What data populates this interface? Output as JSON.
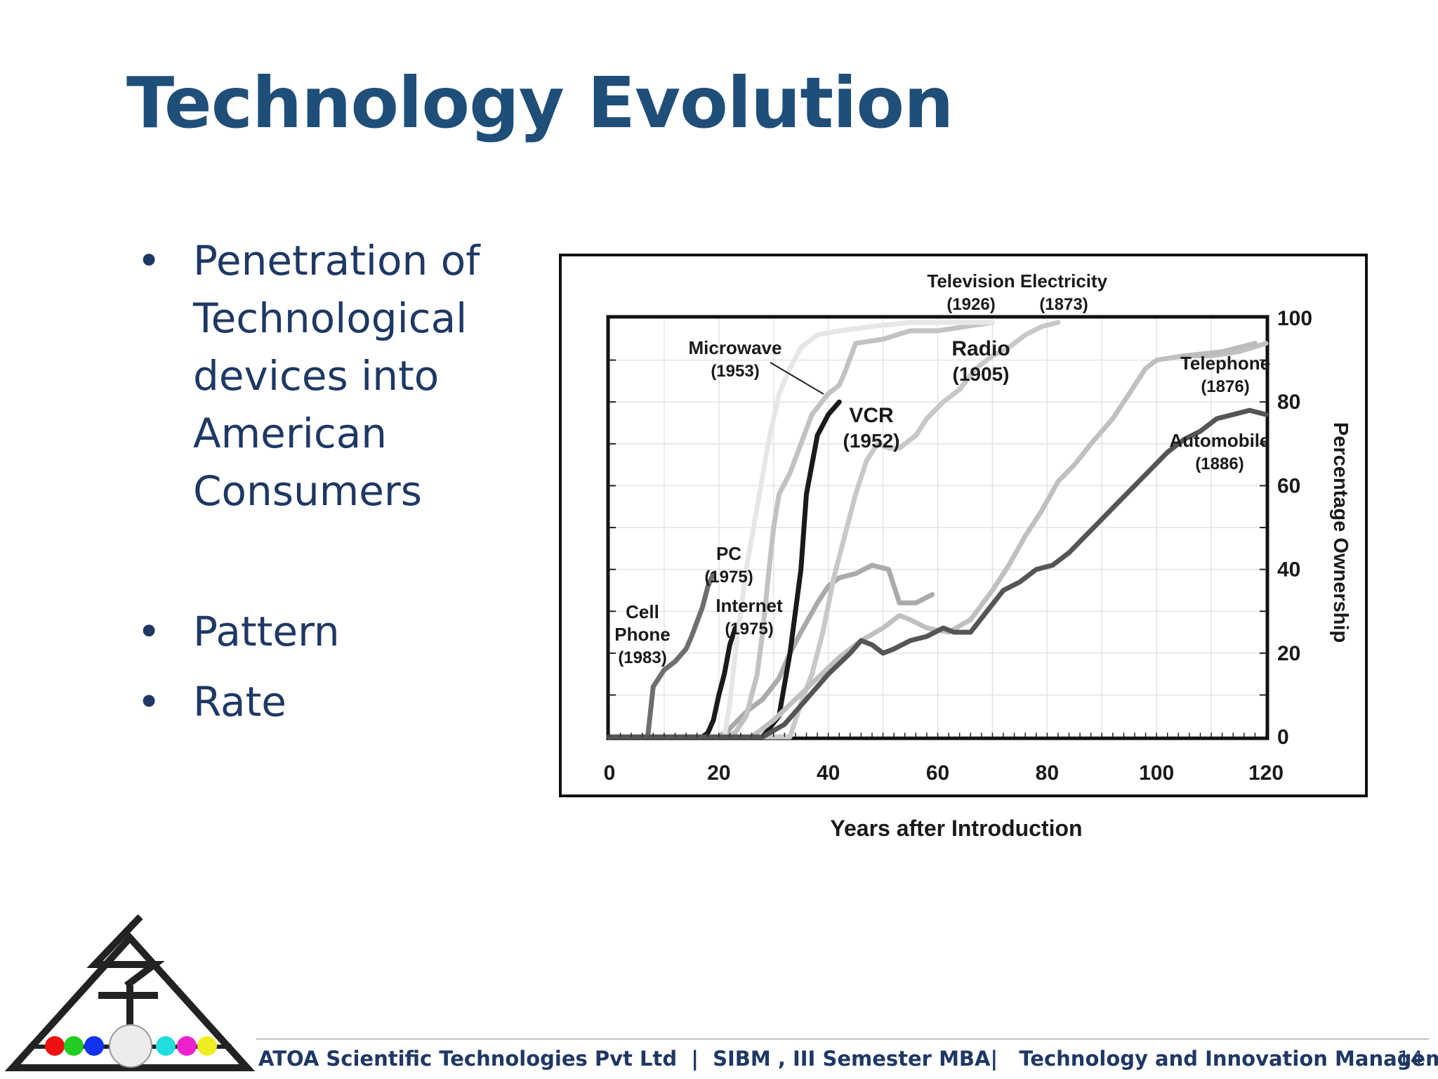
{
  "slide": {
    "title": "Technology Evolution",
    "bullets": [
      "Penetration of Technological devices into American Consumers",
      "Pattern",
      "Rate"
    ],
    "bullet_symbol": "•",
    "page_number": "14"
  },
  "footer": {
    "company": "ATOA Scientific Technologies Pvt Ltd",
    "program": "SIBM , III Semester MBA",
    "course": "Technology and Innovation Management",
    "separator": "|"
  },
  "colors": {
    "title": "#1f4e79",
    "text": "#1f3864"
  },
  "chart_data": {
    "type": "line",
    "title": "",
    "xlabel": "Years after Introduction",
    "ylabel": "Percentage Ownership",
    "xlim": [
      0,
      120
    ],
    "ylim": [
      0,
      100
    ],
    "xticks": [
      0,
      20,
      40,
      60,
      80,
      100,
      120
    ],
    "yticks": [
      0,
      20,
      40,
      60,
      80,
      100
    ],
    "y_axis_side": "right",
    "grid": true,
    "legend": "none",
    "series": [
      {
        "name": "Cell Phone",
        "year": "(1983)",
        "color": "#6e6e6e",
        "points": [
          [
            0,
            0
          ],
          [
            7,
            0
          ],
          [
            8,
            12
          ],
          [
            10,
            16
          ],
          [
            12,
            18
          ],
          [
            14,
            21
          ],
          [
            15,
            24
          ],
          [
            17,
            31
          ],
          [
            18,
            36
          ],
          [
            19,
            39
          ]
        ]
      },
      {
        "name": "PC",
        "year": "(1975)",
        "color": "#aaaaaa",
        "points": [
          [
            0,
            0
          ],
          [
            18,
            0
          ],
          [
            20,
            0
          ],
          [
            22,
            2
          ],
          [
            25,
            6
          ],
          [
            28,
            9
          ],
          [
            31,
            14
          ],
          [
            33,
            20
          ],
          [
            35,
            25
          ],
          [
            38,
            32
          ],
          [
            40,
            36
          ],
          [
            42,
            38
          ],
          [
            45,
            39
          ],
          [
            48,
            41
          ],
          [
            51,
            40
          ],
          [
            53,
            32
          ],
          [
            56,
            32
          ],
          [
            59,
            34
          ]
        ]
      },
      {
        "name": "Internet",
        "year": "(1975)",
        "color": "#1a1a1a",
        "points": [
          [
            0,
            0
          ],
          [
            17,
            0
          ],
          [
            18,
            1
          ],
          [
            19,
            4
          ],
          [
            20,
            10
          ],
          [
            21,
            15
          ],
          [
            22,
            22
          ],
          [
            23,
            26
          ]
        ]
      },
      {
        "name": "Microwave",
        "year": "(1953)",
        "color": "#c2c2c2",
        "points": [
          [
            0,
            0
          ],
          [
            20,
            0
          ],
          [
            23,
            1
          ],
          [
            25,
            5
          ],
          [
            27,
            15
          ],
          [
            28,
            25
          ],
          [
            29,
            38
          ],
          [
            30,
            50
          ],
          [
            31,
            58
          ],
          [
            33,
            63
          ],
          [
            35,
            70
          ],
          [
            37,
            77
          ],
          [
            40,
            82
          ],
          [
            42,
            84
          ],
          [
            43,
            87
          ],
          [
            45,
            94
          ],
          [
            50,
            95
          ],
          [
            55,
            97
          ],
          [
            60,
            97
          ],
          [
            65,
            98
          ],
          [
            70,
            99
          ]
        ]
      },
      {
        "name": "VCR",
        "year": "(1952)",
        "color": "#1a1a1a",
        "points": [
          [
            0,
            0
          ],
          [
            26,
            0
          ],
          [
            28,
            0
          ],
          [
            31,
            5
          ],
          [
            33,
            20
          ],
          [
            35,
            40
          ],
          [
            36,
            58
          ],
          [
            37,
            65
          ],
          [
            38,
            72
          ],
          [
            40,
            77
          ],
          [
            42,
            80
          ]
        ]
      },
      {
        "name": "Television",
        "year": "(1926)",
        "color": "#e6e6e6",
        "points": [
          [
            0,
            0
          ],
          [
            21,
            0
          ],
          [
            22,
            8
          ],
          [
            23,
            20
          ],
          [
            25,
            40
          ],
          [
            27,
            55
          ],
          [
            29,
            70
          ],
          [
            31,
            82
          ],
          [
            33,
            88
          ],
          [
            35,
            93
          ],
          [
            38,
            96
          ],
          [
            42,
            97
          ],
          [
            48,
            98
          ],
          [
            55,
            99
          ],
          [
            62,
            99
          ],
          [
            70,
            99
          ]
        ]
      },
      {
        "name": "Radio",
        "year": "(1905)",
        "color": "#c8c8c8",
        "points": [
          [
            0,
            0
          ],
          [
            33,
            0
          ],
          [
            35,
            8
          ],
          [
            37,
            15
          ],
          [
            39,
            25
          ],
          [
            41,
            38
          ],
          [
            43,
            48
          ],
          [
            45,
            58
          ],
          [
            47,
            66
          ],
          [
            49,
            70
          ],
          [
            51,
            69
          ],
          [
            53,
            69
          ],
          [
            56,
            72
          ],
          [
            58,
            76
          ],
          [
            61,
            80
          ],
          [
            64,
            83
          ],
          [
            67,
            88
          ],
          [
            70,
            91
          ],
          [
            73,
            93
          ],
          [
            76,
            96
          ],
          [
            79,
            98
          ],
          [
            82,
            99
          ]
        ]
      },
      {
        "name": "Electricity",
        "year": "(1873)",
        "color": "#c0c0c0",
        "points": [
          [
            0,
            0
          ],
          [
            26,
            0
          ],
          [
            30,
            4
          ],
          [
            34,
            9
          ],
          [
            38,
            14
          ],
          [
            42,
            19
          ],
          [
            46,
            23
          ],
          [
            50,
            26
          ],
          [
            53,
            29
          ],
          [
            55,
            28
          ],
          [
            58,
            26
          ],
          [
            62,
            25
          ],
          [
            66,
            28
          ],
          [
            70,
            35
          ],
          [
            73,
            41
          ],
          [
            76,
            48
          ],
          [
            79,
            54
          ],
          [
            82,
            61
          ],
          [
            85,
            65
          ],
          [
            88,
            70
          ],
          [
            92,
            76
          ],
          [
            95,
            82
          ],
          [
            98,
            88
          ],
          [
            100,
            90
          ],
          [
            105,
            91
          ],
          [
            110,
            91
          ],
          [
            115,
            92
          ],
          [
            120,
            94
          ]
        ]
      },
      {
        "name": "Telephone",
        "year": "(1876)",
        "color": "#bcbcbc",
        "points": [
          [
            105,
            91
          ],
          [
            112,
            92
          ],
          [
            118,
            94
          ]
        ]
      },
      {
        "name": "Automobile",
        "year": "(1886)",
        "color": "#555555",
        "points": [
          [
            0,
            0
          ],
          [
            28,
            0
          ],
          [
            32,
            3
          ],
          [
            36,
            9
          ],
          [
            40,
            15
          ],
          [
            44,
            20
          ],
          [
            46,
            23
          ],
          [
            48,
            22
          ],
          [
            50,
            20
          ],
          [
            52,
            21
          ],
          [
            55,
            23
          ],
          [
            58,
            24
          ],
          [
            61,
            26
          ],
          [
            63,
            25
          ],
          [
            66,
            25
          ],
          [
            69,
            30
          ],
          [
            72,
            35
          ],
          [
            75,
            37
          ],
          [
            78,
            40
          ],
          [
            81,
            41
          ],
          [
            84,
            44
          ],
          [
            87,
            48
          ],
          [
            90,
            52
          ],
          [
            93,
            56
          ],
          [
            96,
            60
          ],
          [
            99,
            64
          ],
          [
            102,
            68
          ],
          [
            105,
            71
          ],
          [
            108,
            73
          ],
          [
            111,
            76
          ],
          [
            114,
            77
          ],
          [
            117,
            78
          ],
          [
            120,
            77
          ]
        ]
      }
    ]
  }
}
